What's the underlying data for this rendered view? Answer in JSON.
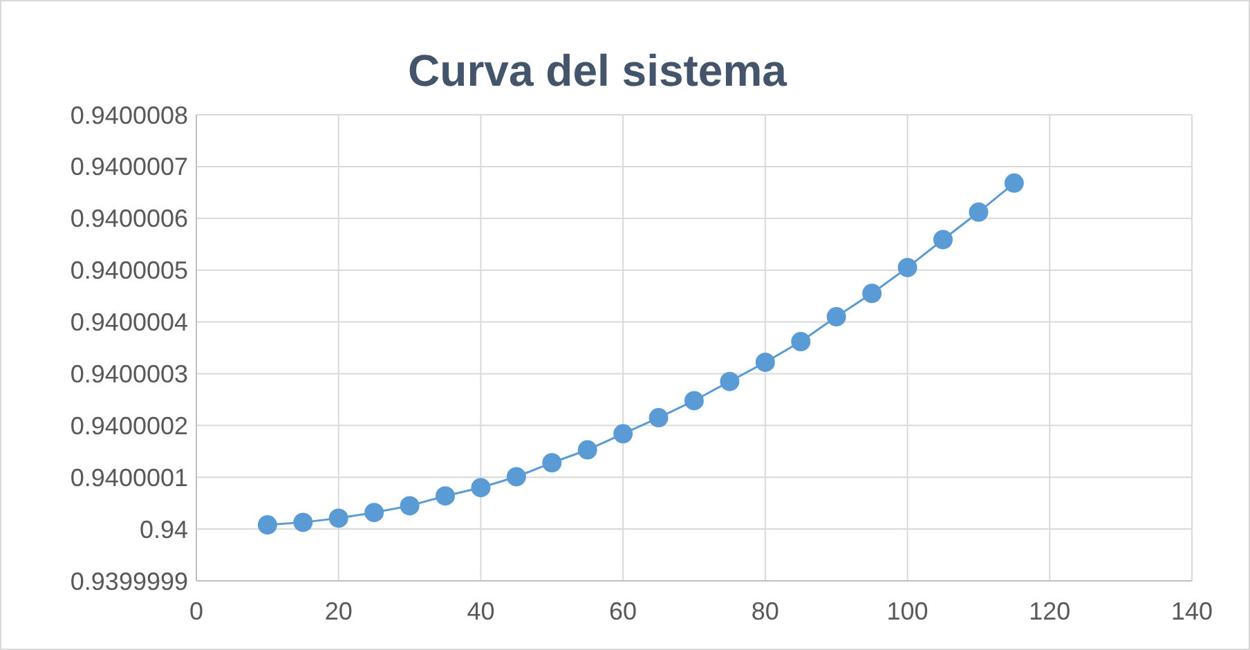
{
  "chart_data": {
    "type": "line",
    "title": "Curva del sistema",
    "x": [
      10,
      15,
      20,
      25,
      30,
      35,
      40,
      45,
      50,
      55,
      60,
      65,
      70,
      75,
      80,
      85,
      90,
      95,
      100,
      105,
      110,
      115
    ],
    "series": [
      {
        "color": "#5b9bd5",
        "values": [
          0.940000008,
          0.940000013,
          0.940000021,
          0.940000032,
          0.940000045,
          0.940000064,
          0.94000008,
          0.940000101,
          0.940000128,
          0.940000153,
          0.940000184,
          0.940000215,
          0.940000248,
          0.940000285,
          0.940000322,
          0.940000362,
          0.94000041,
          0.940000455,
          0.940000505,
          0.940000559,
          0.940000612,
          0.940000668
        ]
      }
    ],
    "xlim": [
      0,
      140
    ],
    "xticks": [
      0,
      20,
      40,
      60,
      80,
      100,
      120,
      140
    ],
    "ylim": [
      0.9399999,
      0.9400008
    ],
    "yticks": [
      0.9399999,
      0.94,
      0.9400001,
      0.9400002,
      0.9400003,
      0.9400004,
      0.9400005,
      0.9400006,
      0.9400007,
      0.9400008
    ],
    "grid": true,
    "marker": "circle",
    "line_style": "solid"
  }
}
